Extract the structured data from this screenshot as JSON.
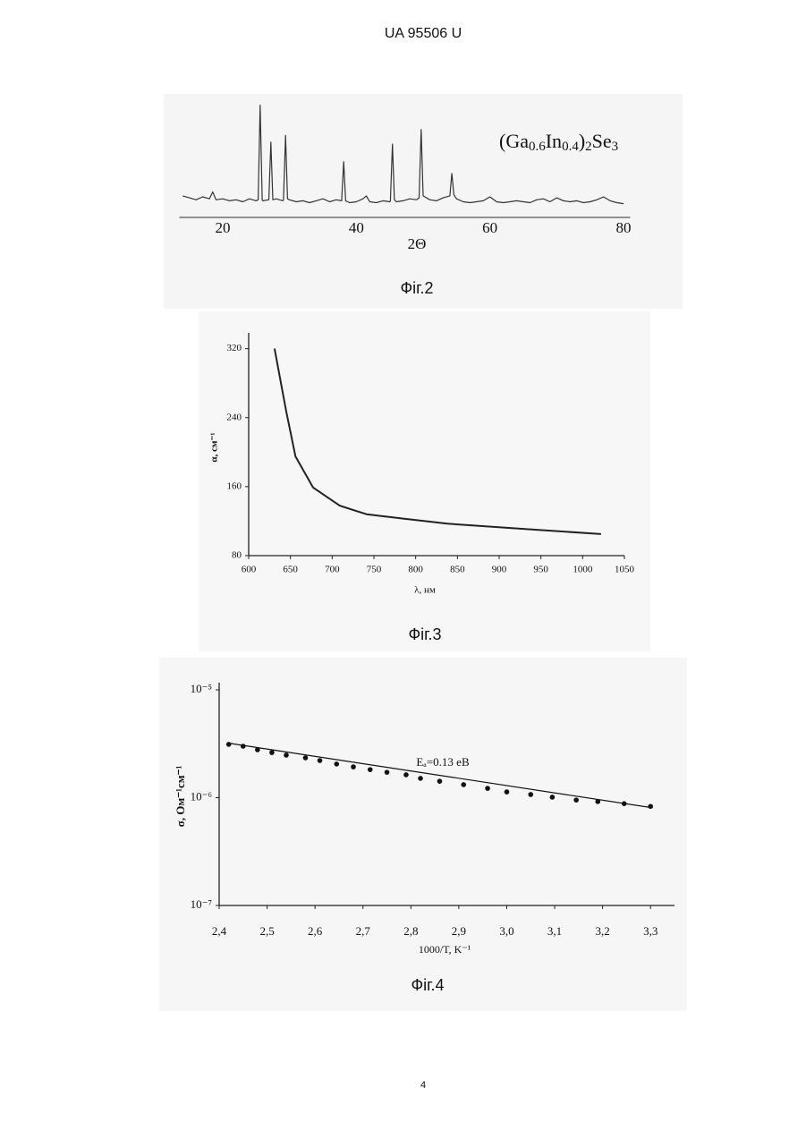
{
  "header": "UA   95506   U",
  "page_number": "4",
  "chart_data": [
    {
      "type": "line",
      "caption": "Фіг.2",
      "x_label": "2Θ",
      "annotation_parts": [
        {
          "text": "(Ga",
          "sub": false
        },
        {
          "text": "0.6",
          "sub": true
        },
        {
          "text": "In",
          "sub": false
        },
        {
          "text": "0.4",
          "sub": true
        },
        {
          "text": ")",
          "sub": false
        },
        {
          "text": "2",
          "sub": true
        },
        {
          "text": "Se",
          "sub": false
        },
        {
          "text": "3",
          "sub": true
        }
      ],
      "x": [
        14,
        15,
        16,
        17,
        18,
        18.5,
        19,
        20,
        21,
        22,
        23,
        24,
        25,
        25.3,
        25.6,
        25.9,
        26,
        26.9,
        27.2,
        27.5,
        28,
        29,
        29.1,
        29.4,
        29.7,
        30,
        31,
        32,
        33,
        34,
        35,
        36,
        37,
        37.8,
        38.1,
        38.4,
        39,
        40,
        41,
        41.5,
        42,
        43,
        44,
        45,
        45.1,
        45.4,
        45.7,
        46,
        47,
        48,
        49,
        49.4,
        49.7,
        50,
        51,
        52,
        53,
        54,
        54.3,
        54.6,
        55,
        56,
        57,
        58,
        59,
        60,
        61,
        62,
        63,
        64,
        65,
        66,
        67,
        68,
        69,
        70,
        71,
        72,
        73,
        74,
        75,
        76,
        77,
        78,
        79,
        80
      ],
      "values": [
        12,
        10,
        8,
        11,
        9,
        16,
        8,
        9,
        7,
        8,
        6,
        9,
        7,
        8,
        105,
        8,
        7,
        8,
        67,
        8,
        9,
        7,
        8,
        74,
        9,
        8,
        6,
        7,
        5,
        7,
        9,
        6,
        8,
        7,
        47,
        7,
        5,
        6,
        9,
        12,
        6,
        5,
        7,
        6,
        7,
        65,
        8,
        6,
        7,
        9,
        8,
        10,
        80,
        12,
        8,
        7,
        10,
        12,
        35,
        13,
        9,
        6,
        5,
        6,
        7,
        11,
        6,
        5,
        6,
        7,
        6,
        5,
        8,
        9,
        6,
        10,
        7,
        6,
        7,
        5,
        6,
        8,
        11,
        7,
        5,
        4
      ],
      "color": "#333333",
      "xlim": [
        13.5,
        81
      ],
      "ylim": [
        0,
        110
      ],
      "xticks": [
        20,
        40,
        60,
        80
      ]
    },
    {
      "type": "line",
      "caption": "Фіг.3",
      "x_label": "λ, нм",
      "y_label": "α, см⁻¹",
      "x": [
        631,
        645,
        656,
        677,
        709,
        741,
        784,
        838,
        945,
        1022
      ],
      "values": [
        320,
        247,
        195,
        159,
        138,
        128,
        123,
        117,
        110,
        105
      ],
      "color": "#222222",
      "xlim": [
        600,
        1050
      ],
      "ylim": [
        80,
        330
      ],
      "xticks": [
        600,
        650,
        700,
        750,
        800,
        850,
        900,
        950,
        1000,
        1050
      ],
      "yticks": [
        80,
        160,
        240,
        320
      ]
    },
    {
      "type": "scatter",
      "caption": "Фіг.4",
      "x_label": "1000/T, K⁻¹",
      "y_label": "σ, Ом⁻¹см⁻¹",
      "annotation": "Eₐ=0.13 eB",
      "log_y": true,
      "series": [
        {
          "color": "#111111",
          "style": "points",
          "x": [
            2.42,
            2.45,
            2.48,
            2.51,
            2.54,
            2.58,
            2.61,
            2.645,
            2.68,
            2.715,
            2.75,
            2.79,
            2.82,
            2.86,
            2.91,
            2.96,
            3.0,
            3.05,
            3.095,
            3.145,
            3.19,
            3.245,
            3.3
          ],
          "values": [
            3.12e-06,
            3e-06,
            2.78e-06,
            2.62e-06,
            2.48e-06,
            2.34e-06,
            2.21e-06,
            2.05e-06,
            1.93e-06,
            1.82e-06,
            1.72e-06,
            1.63e-06,
            1.51e-06,
            1.42e-06,
            1.32e-06,
            1.22e-06,
            1.13e-06,
            1.07e-06,
            1.01e-06,
            9.5e-07,
            9.2e-07,
            8.8e-07,
            8.3e-07
          ]
        },
        {
          "color": "#111111",
          "style": "line",
          "x": [
            2.42,
            3.3
          ],
          "values": [
            3.2e-06,
            8.1e-07
          ]
        }
      ],
      "xlim": [
        2.4,
        3.35
      ],
      "ylim": [
        1e-07,
        1e-05
      ],
      "xticks": [
        {
          "value": 2.4,
          "label": "2,4"
        },
        {
          "value": 2.5,
          "label": "2,5"
        },
        {
          "value": 2.6,
          "label": "2,6"
        },
        {
          "value": 2.7,
          "label": "2,7"
        },
        {
          "value": 2.8,
          "label": "2,8"
        },
        {
          "value": 2.9,
          "label": "2,9"
        },
        {
          "value": 3.0,
          "label": "3,0"
        },
        {
          "value": 3.1,
          "label": "3,1"
        },
        {
          "value": 3.2,
          "label": "3,2"
        },
        {
          "value": 3.3,
          "label": "3,3"
        }
      ],
      "yticks": [
        {
          "value": 1e-07,
          "label": "10⁻⁷"
        },
        {
          "value": 1e-06,
          "label": "10⁻⁶"
        },
        {
          "value": 1e-05,
          "label": "10⁻⁵"
        }
      ]
    }
  ]
}
